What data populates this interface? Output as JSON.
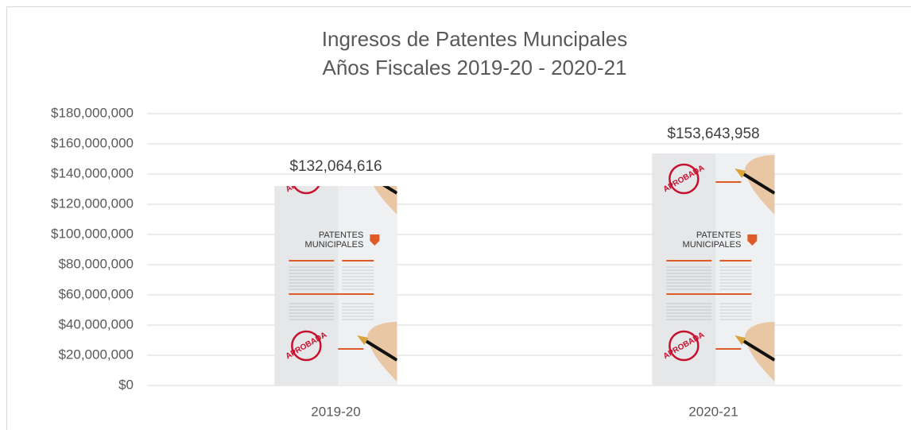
{
  "chart_data": {
    "type": "bar",
    "title": "Ingresos de Patentes Muncipales",
    "subtitle": "Años Fiscales 2019-20 - 2020-21",
    "categories": [
      "2019-20",
      "2020-21"
    ],
    "values": [
      132064616,
      153643958
    ],
    "value_labels": [
      "$132,064,616",
      "$153,643,958"
    ],
    "color": "#e6e7e9",
    "ylim": [
      0,
      180000000
    ],
    "yticks": [
      {
        "value": 0,
        "label": "$0"
      },
      {
        "value": 20000000,
        "label": "$20,000,000"
      },
      {
        "value": 40000000,
        "label": "$40,000,000"
      },
      {
        "value": 60000000,
        "label": "$60,000,000"
      },
      {
        "value": 80000000,
        "label": "$80,000,000"
      },
      {
        "value": 100000000,
        "label": "$100,000,000"
      },
      {
        "value": 120000000,
        "label": "$120,000,000"
      },
      {
        "value": 140000000,
        "label": "$140,000,000"
      },
      {
        "value": 160000000,
        "label": "$160,000,000"
      },
      {
        "value": 180000000,
        "label": "$180,000,000"
      }
    ],
    "grid": true,
    "bar_image": {
      "heading": [
        "PATENTES",
        "MUNICIPALES"
      ],
      "stamp": "APROBADA"
    }
  }
}
